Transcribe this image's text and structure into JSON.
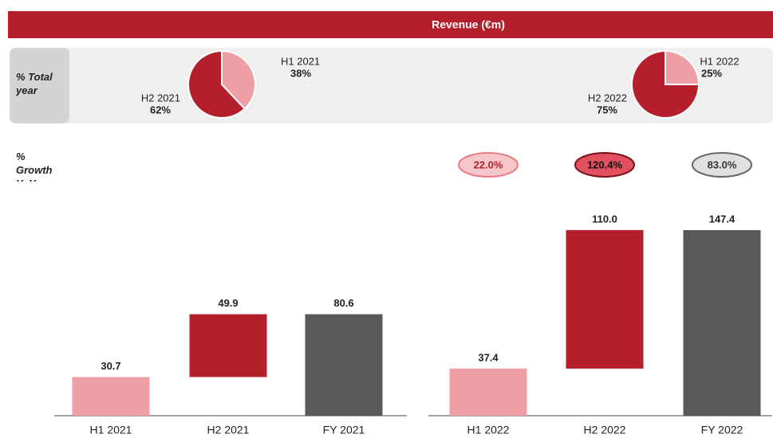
{
  "header": {
    "title": "Revenue (€m)",
    "row_labels": [
      "% Total year",
      "% Growth YoY"
    ]
  },
  "chart_data": [
    {
      "type": "pie",
      "categories": [
        "H1 2021",
        "H2 2021"
      ],
      "values": [
        38,
        62
      ],
      "value_labels": [
        "38%",
        "62%"
      ],
      "colors": [
        "#f09ea5",
        "#b51f2b"
      ]
    },
    {
      "type": "pie",
      "categories": [
        "H1 2022",
        "H2 2022"
      ],
      "values": [
        25,
        75
      ],
      "value_labels": [
        "25%",
        "75%"
      ],
      "colors": [
        "#f09ea5",
        "#b51f2b"
      ]
    },
    {
      "type": "waterfall",
      "categories": [
        "H1 2021",
        "H2 2021",
        "FY 2021"
      ],
      "values": [
        30.7,
        49.9,
        80.6
      ],
      "value_labels": [
        "30.7",
        "49.9",
        "80.6"
      ],
      "totals": [
        false,
        false,
        true
      ],
      "colors": [
        "#f09ea5",
        "#b51f2b",
        "#58595b"
      ],
      "ylim": [
        0,
        160
      ]
    },
    {
      "type": "waterfall",
      "categories": [
        "H1 2022",
        "H2 2022",
        "FY 2022"
      ],
      "values": [
        37.4,
        110.0,
        147.4
      ],
      "value_labels": [
        "37.4",
        "110.0",
        "147.4"
      ],
      "totals": [
        false,
        false,
        true
      ],
      "colors": [
        "#f09ea5",
        "#b51f2b",
        "#58595b"
      ],
      "ylim": [
        0,
        160
      ],
      "growth": [
        22.0,
        120.4,
        83.0
      ],
      "growth_labels": [
        "22.0%",
        "120.4%",
        "83.0%"
      ]
    }
  ]
}
